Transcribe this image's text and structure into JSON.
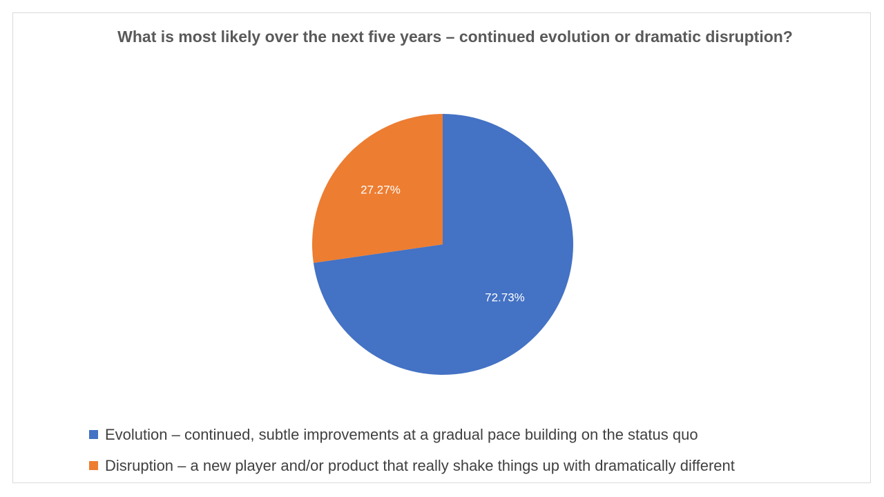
{
  "chart_data": {
    "type": "pie",
    "title": "What is most likely over the next five years – continued evolution or dramatic disruption?",
    "categories": [
      "Evolution – continued, subtle improvements at a gradual pace building on the status quo",
      "Disruption – a new player and/or product that really shake things up with dramatically different"
    ],
    "values": [
      72.73,
      27.27
    ],
    "data_labels": [
      "72.73%",
      "27.27%"
    ],
    "colors": [
      "#4472C4",
      "#ED7D31"
    ],
    "legend_position": "bottom"
  }
}
